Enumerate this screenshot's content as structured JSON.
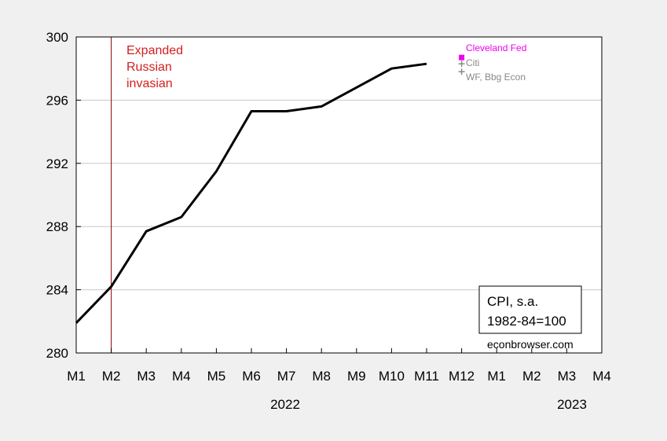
{
  "chart_data": {
    "type": "line",
    "x": [
      "M1",
      "M2",
      "M3",
      "M4",
      "M5",
      "M6",
      "M7",
      "M8",
      "M9",
      "M10",
      "M11"
    ],
    "series": [
      {
        "values": [
          281.9,
          284.2,
          287.7,
          288.6,
          291.5,
          295.3,
          295.3,
          295.6,
          296.8,
          298.0,
          298.3
        ],
        "color": "#000000"
      }
    ],
    "forecasts": [
      {
        "name": "Cleveland Fed",
        "x": "M12",
        "value": 298.7,
        "color": "#ee00ee",
        "marker": "square"
      },
      {
        "name": "Citi",
        "x": "M12",
        "value": 298.3,
        "color": "#888888",
        "marker": "plus"
      },
      {
        "name": "WF, Bbg Econ",
        "x": "M12",
        "value": 297.8,
        "color": "#888888",
        "marker": "plus"
      }
    ],
    "x_ticks": [
      "M1",
      "M2",
      "M3",
      "M4",
      "M5",
      "M6",
      "M7",
      "M8",
      "M9",
      "M10",
      "M11",
      "M12",
      "M1",
      "M2",
      "M3",
      "M4"
    ],
    "year_labels": [
      "2022",
      "2023"
    ],
    "y_ticks": [
      "280",
      "284",
      "288",
      "292",
      "296",
      "300"
    ],
    "ylim": [
      280,
      300
    ],
    "grid": "horizontal",
    "vline": {
      "x": "M2",
      "color": "#8b0000"
    },
    "annotation": {
      "lines": [
        "Expanded",
        "Russian",
        "invasian"
      ],
      "color": "#d41e1e"
    },
    "note_box": {
      "lines": [
        "CPI, s.a.",
        "1982-84=100"
      ]
    },
    "credit": "econbrowser.com",
    "background": "#f0f0f0",
    "plot_background": "#ffffff"
  }
}
